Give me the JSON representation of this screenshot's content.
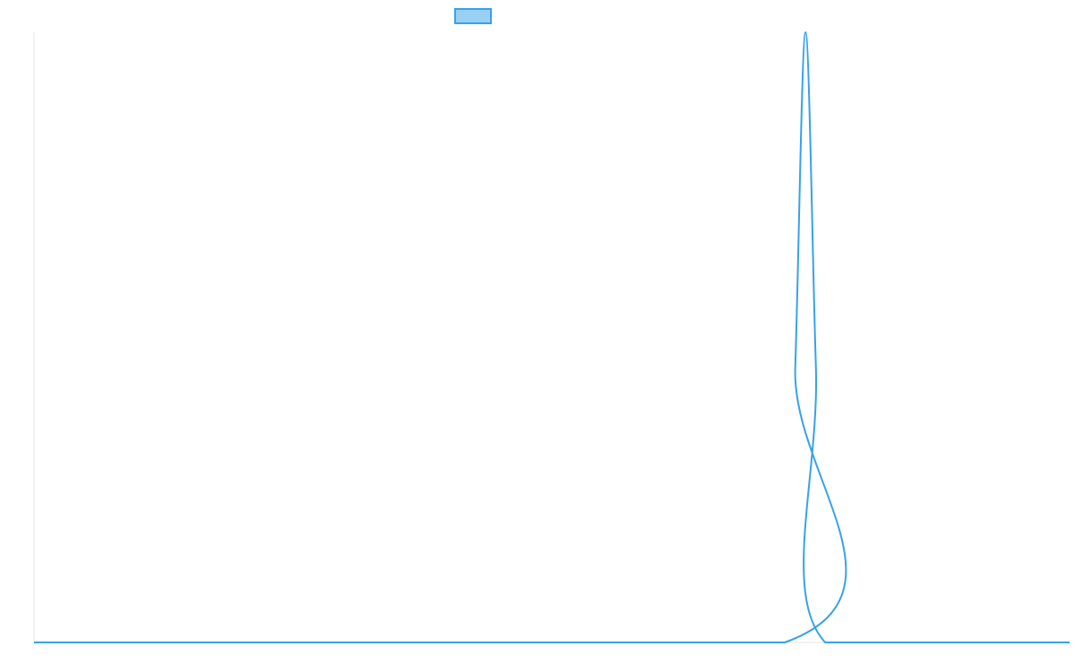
{
  "chart_data": {
    "type": "line",
    "title": "",
    "xlabel": "",
    "ylabel": "",
    "legend": {
      "placement": "top-center",
      "entries": [
        {
          "name": "",
          "swatch_fill": "#9ad0f5",
          "swatch_stroke": "#36a2eb"
        }
      ]
    },
    "grid": false,
    "xlim": [
      0,
      100
    ],
    "ylim": [
      0,
      1
    ],
    "series": [
      {
        "name": "",
        "color": "#36a2eb",
        "points": [
          {
            "x": 0,
            "y": 0
          },
          {
            "x": 72.5,
            "y": 0
          },
          {
            "x": 73.5,
            "y": 0.45
          },
          {
            "x": 74.5,
            "y": 1
          },
          {
            "x": 75.5,
            "y": 0.45
          },
          {
            "x": 76.4,
            "y": 0
          },
          {
            "x": 100,
            "y": 0
          }
        ]
      }
    ]
  },
  "colors": {
    "axis": "#e6e6e6",
    "line": "#36a2eb",
    "legend_fill": "#9ad0f5"
  }
}
